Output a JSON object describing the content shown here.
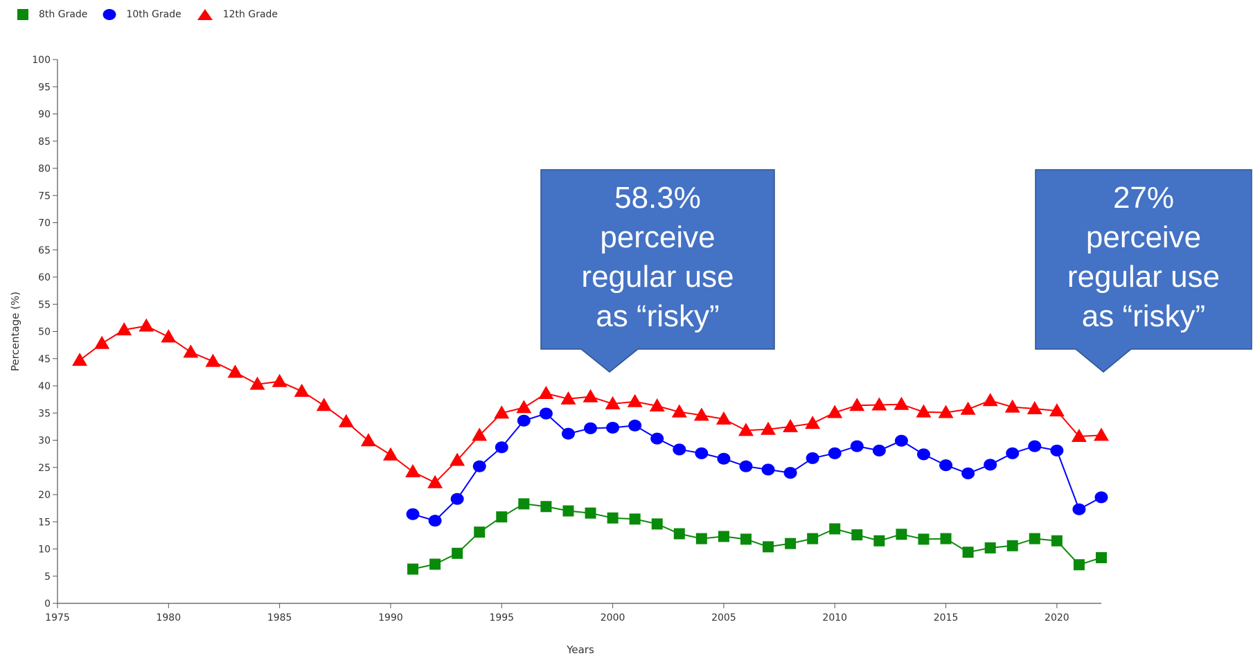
{
  "legend": {
    "items": [
      {
        "label": "8th Grade",
        "color": "#0a8a0a",
        "marker": "square"
      },
      {
        "label": "10th Grade",
        "color": "#0000ff",
        "marker": "circle"
      },
      {
        "label": "12th Grade",
        "color": "#ff0000",
        "marker": "triangle"
      }
    ]
  },
  "callouts": [
    {
      "lines": [
        "58.3%",
        "perceive",
        "regular use",
        "as “risky”"
      ],
      "fill": "#4472c4",
      "stroke": "#2f528f"
    },
    {
      "lines": [
        "27%",
        "perceive",
        "regular use",
        "as “risky”"
      ],
      "fill": "#4472c4",
      "stroke": "#2f528f"
    }
  ],
  "chart_data": {
    "type": "line",
    "title": "",
    "xlabel": "Years",
    "ylabel": "Percentage (%)",
    "xlim": [
      1975,
      2022
    ],
    "ylim": [
      0,
      100
    ],
    "x_ticks": [
      1975,
      1980,
      1985,
      1990,
      1995,
      2000,
      2005,
      2010,
      2015,
      2020
    ],
    "y_ticks": [
      0,
      5,
      10,
      15,
      20,
      25,
      30,
      35,
      40,
      45,
      50,
      55,
      60,
      65,
      70,
      75,
      80,
      85,
      90,
      95,
      100
    ],
    "grid": false,
    "legend_position": "top-left",
    "series": [
      {
        "name": "8th Grade",
        "color": "#0a8a0a",
        "marker": "square",
        "x": [
          1991,
          1992,
          1993,
          1994,
          1995,
          1996,
          1997,
          1998,
          1999,
          2000,
          2001,
          2002,
          2003,
          2004,
          2005,
          2006,
          2007,
          2008,
          2009,
          2010,
          2011,
          2012,
          2013,
          2014,
          2015,
          2016,
          2017,
          2018,
          2019,
          2020,
          2021,
          2022
        ],
        "y": [
          6.3,
          7.2,
          9.2,
          13.1,
          15.9,
          18.3,
          17.8,
          17.0,
          16.6,
          15.7,
          15.5,
          14.6,
          12.8,
          11.9,
          12.3,
          11.8,
          10.4,
          11.0,
          11.9,
          13.7,
          12.6,
          11.5,
          12.7,
          11.8,
          11.9,
          9.4,
          10.2,
          10.6,
          11.9,
          11.5,
          7.1,
          8.4
        ]
      },
      {
        "name": "10th Grade",
        "color": "#0000ff",
        "marker": "circle",
        "x": [
          1991,
          1992,
          1993,
          1994,
          1995,
          1996,
          1997,
          1998,
          1999,
          2000,
          2001,
          2002,
          2003,
          2004,
          2005,
          2006,
          2007,
          2008,
          2009,
          2010,
          2011,
          2012,
          2013,
          2014,
          2015,
          2016,
          2017,
          2018,
          2019,
          2020,
          2021,
          2022
        ],
        "y": [
          16.4,
          15.2,
          19.2,
          25.2,
          28.7,
          33.6,
          34.9,
          31.2,
          32.2,
          32.3,
          32.7,
          30.3,
          28.3,
          27.6,
          26.6,
          25.2,
          24.6,
          24.0,
          26.7,
          27.6,
          28.9,
          28.1,
          29.9,
          27.4,
          25.4,
          23.9,
          25.5,
          27.6,
          28.9,
          28.1,
          17.3,
          19.5
        ]
      },
      {
        "name": "12th Grade",
        "color": "#ff0000",
        "marker": "triangle",
        "x": [
          1976,
          1977,
          1978,
          1979,
          1980,
          1981,
          1982,
          1983,
          1984,
          1985,
          1986,
          1987,
          1988,
          1989,
          1990,
          1991,
          1992,
          1993,
          1994,
          1995,
          1996,
          1997,
          1998,
          1999,
          2000,
          2001,
          2002,
          2003,
          2004,
          2005,
          2006,
          2007,
          2008,
          2009,
          2010,
          2011,
          2012,
          2013,
          2014,
          2015,
          2016,
          2017,
          2018,
          2019,
          2020,
          2021,
          2022
        ],
        "y": [
          44.7,
          47.8,
          50.3,
          51.0,
          49.0,
          46.2,
          44.5,
          42.5,
          40.3,
          40.8,
          39.0,
          36.4,
          33.4,
          29.9,
          27.3,
          24.2,
          22.2,
          26.3,
          30.9,
          35.0,
          36.0,
          38.6,
          37.6,
          38.0,
          36.7,
          37.1,
          36.3,
          35.2,
          34.6,
          33.9,
          31.8,
          32.0,
          32.5,
          33.1,
          35.1,
          36.4,
          36.5,
          36.6,
          35.2,
          35.1,
          35.7,
          37.3,
          36.1,
          35.8,
          35.4,
          30.7,
          30.9
        ]
      }
    ]
  }
}
